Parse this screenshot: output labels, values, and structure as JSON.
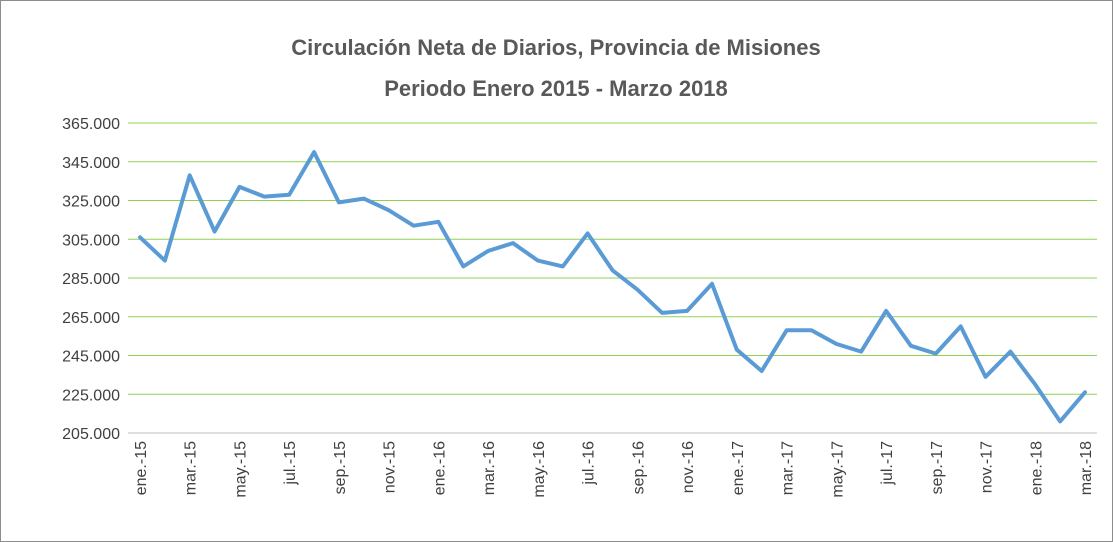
{
  "chart_data": {
    "type": "line",
    "title": "Circulación Neta de Diarios, Provincia de Misiones",
    "subtitle": "Periodo Enero 2015 - Marzo 2018",
    "categories": [
      "ene.-15",
      null,
      "mar.-15",
      null,
      "may.-15",
      null,
      "jul.-15",
      null,
      "sep.-15",
      null,
      "nov.-15",
      null,
      "ene.-16",
      null,
      "mar.-16",
      null,
      "may.-16",
      null,
      "jul.-16",
      null,
      "sep.-16",
      null,
      "nov.-16",
      null,
      "ene.-17",
      null,
      "mar.-17",
      null,
      "may.-17",
      null,
      "jul.-17",
      null,
      "sep.-17",
      null,
      "nov.-17",
      null,
      "ene.-18",
      null,
      "mar.-18"
    ],
    "series": [
      {
        "color": "#5b9bd5",
        "values": [
          306000,
          294000,
          338000,
          309000,
          332000,
          327000,
          328000,
          350000,
          324000,
          326000,
          320000,
          312000,
          314000,
          291000,
          299000,
          303000,
          294000,
          291000,
          308000,
          289000,
          279000,
          267000,
          268000,
          282000,
          248000,
          237000,
          258000,
          258000,
          251000,
          247000,
          268000,
          250000,
          246000,
          260000,
          234000,
          247000,
          230000,
          211000,
          226000
        ]
      }
    ],
    "ylim": [
      205000,
      365000
    ],
    "yticks": [
      {
        "value": 205000,
        "label": "205.000"
      },
      {
        "value": 225000,
        "label": "225.000"
      },
      {
        "value": 245000,
        "label": "245.000"
      },
      {
        "value": 265000,
        "label": "265.000"
      },
      {
        "value": 285000,
        "label": "285.000"
      },
      {
        "value": 305000,
        "label": "305.000"
      },
      {
        "value": 325000,
        "label": "325.000"
      },
      {
        "value": 345000,
        "label": "345.000"
      },
      {
        "value": 365000,
        "label": "365.000"
      }
    ],
    "grid": true,
    "grid_color": "#92d050"
  }
}
